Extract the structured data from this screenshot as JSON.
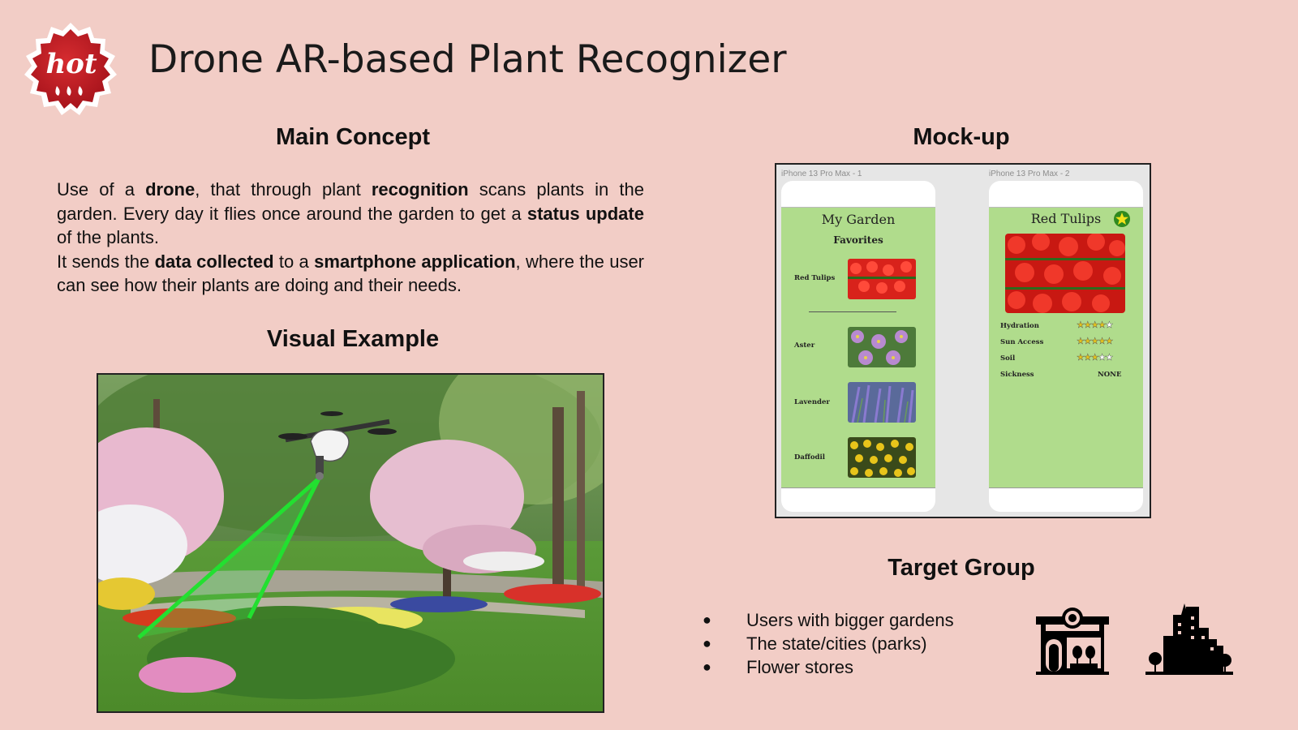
{
  "slide": {
    "title": "Drone AR-based Plant Recognizer",
    "badge_text": "hot"
  },
  "main_concept": {
    "heading": "Main Concept",
    "paragraph_1": [
      {
        "text": "Use of a ",
        "bold": false
      },
      {
        "text": "drone",
        "bold": true
      },
      {
        "text": ", that through plant ",
        "bold": false
      },
      {
        "text": "recognition",
        "bold": true
      },
      {
        "text": " scans plants in the garden. Every day it flies once around the garden to get a ",
        "bold": false
      },
      {
        "text": "status update",
        "bold": true
      },
      {
        "text": " of the plants.",
        "bold": false
      }
    ],
    "paragraph_2": [
      {
        "text": "It sends the ",
        "bold": false
      },
      {
        "text": "data collected",
        "bold": true
      },
      {
        "text": " to a ",
        "bold": false
      },
      {
        "text": "smartphone application",
        "bold": true
      },
      {
        "text": ", where the user can see how their plants are doing and their needs.",
        "bold": false
      }
    ]
  },
  "visual_example": {
    "heading": "Visual Example"
  },
  "mockup": {
    "heading": "Mock-up",
    "screen1": {
      "frame_label": "iPhone 13 Pro Max - 1",
      "title": "My Garden",
      "subtitle": "Favorites",
      "favorites": [
        {
          "label": "Red Tulips",
          "color": "#d8221b"
        }
      ],
      "plants": [
        {
          "label": "Aster",
          "color": "#a07ab8"
        },
        {
          "label": "Lavender",
          "color": "#6a5aa8"
        },
        {
          "label": "Daffodil",
          "color": "#d8b415"
        }
      ]
    },
    "screen2": {
      "frame_label": "iPhone 13 Pro Max - 2",
      "title": "Red Tulips",
      "favorite_icon": "star-badge-icon",
      "attributes": [
        {
          "label": "Hydration",
          "rating": 4,
          "max": 5
        },
        {
          "label": "Sun Access",
          "rating": 5,
          "max": 5
        },
        {
          "label": "Soil",
          "rating": 3,
          "max": 5
        }
      ],
      "sickness": {
        "label": "Sickness",
        "value": "NONE"
      }
    }
  },
  "target_group": {
    "heading": "Target Group",
    "bullet_glyph": "●",
    "items": [
      "Users with bigger gardens",
      "The state/cities (parks)",
      "Flower stores"
    ],
    "icons": [
      "flower-store-icon",
      "city-skyline-icon"
    ]
  },
  "colors": {
    "background": "#f2cdc6",
    "badge_red": "#c8202a",
    "app_green": "#b0dc8c",
    "scan_beam": "#22e030"
  }
}
